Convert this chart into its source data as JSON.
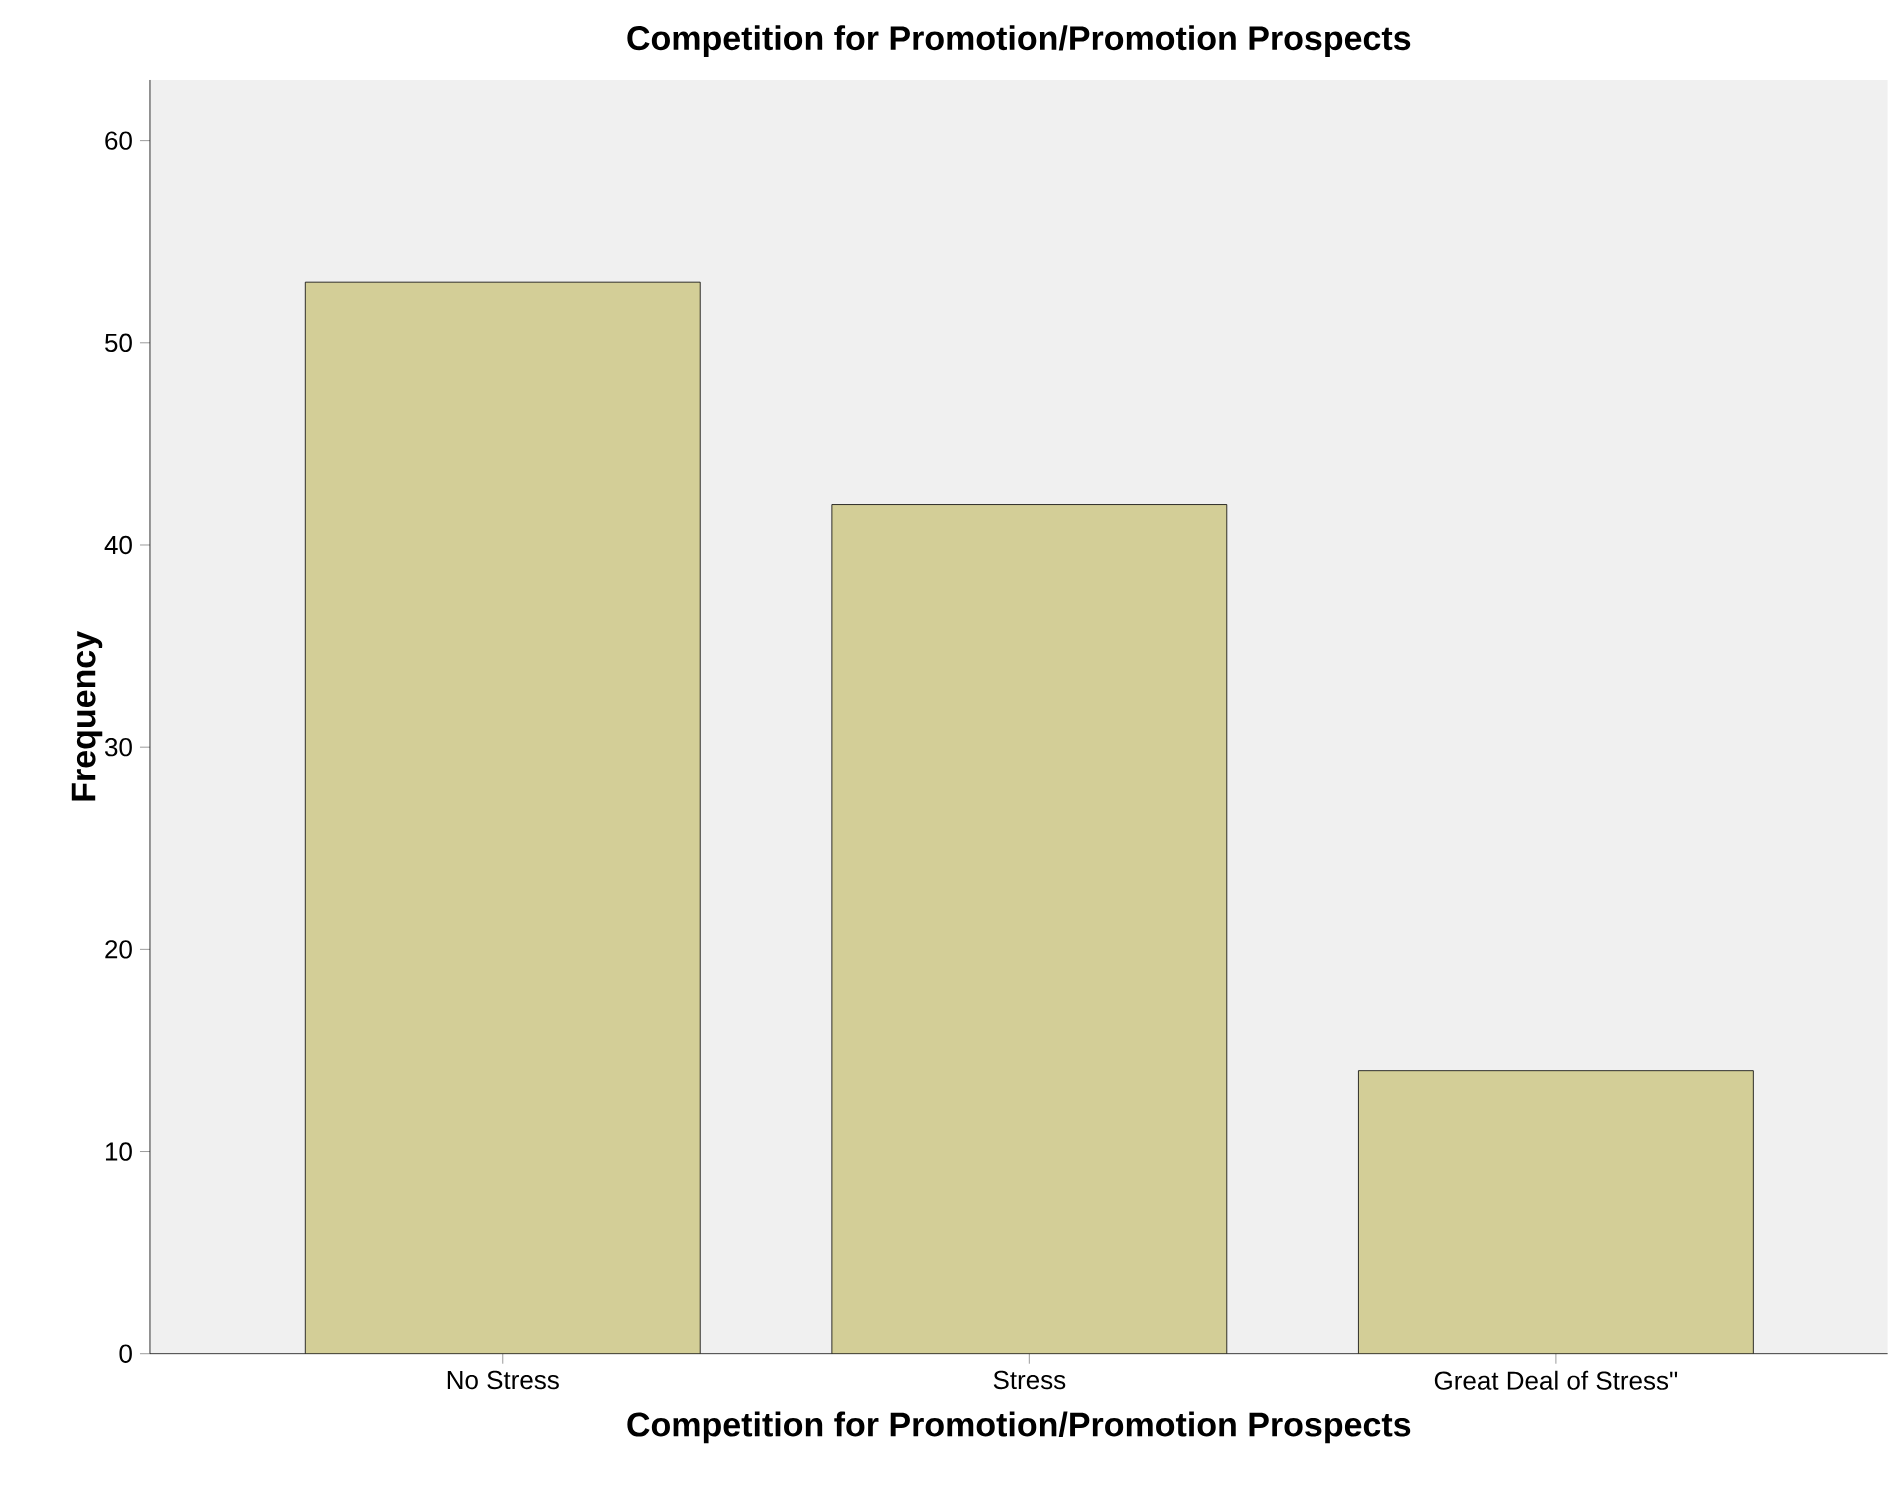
{
  "chart_data": {
    "type": "bar",
    "title": "Competition for Promotion/Promotion Prospects",
    "xlabel": "Competition for Promotion/Promotion Prospects",
    "ylabel": "Frequency",
    "categories": [
      "No Stress",
      "Stress",
      "Great Deal of Stress\""
    ],
    "values": [
      53,
      42,
      14
    ],
    "color": "#d3ce97",
    "ylim": [
      0,
      63
    ],
    "yticks": [
      0,
      10,
      20,
      30,
      40,
      50,
      60
    ]
  }
}
